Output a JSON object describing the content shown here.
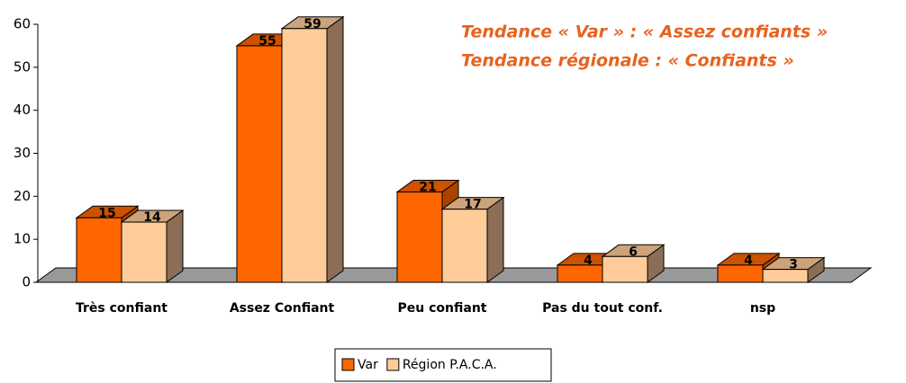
{
  "chart_data": {
    "type": "bar3d",
    "annotations": [
      "Tendance « Var » : « Assez confiants »",
      "Tendance régionale : « Confiants »"
    ],
    "categories": [
      "Très confiant",
      "Assez Confiant",
      "Peu confiant",
      "Pas du tout conf.",
      "nsp"
    ],
    "series": [
      {
        "name": "Var",
        "color": "#ff6600",
        "values": [
          15,
          55,
          21,
          4,
          4
        ]
      },
      {
        "name": "Région P.A.C.A.",
        "color": "#ffcc99",
        "values": [
          14,
          59,
          17,
          6,
          3
        ]
      }
    ],
    "ylim": [
      0,
      60
    ],
    "yticks": [
      0,
      10,
      20,
      30,
      40,
      50,
      60
    ],
    "legend": "bottom"
  }
}
